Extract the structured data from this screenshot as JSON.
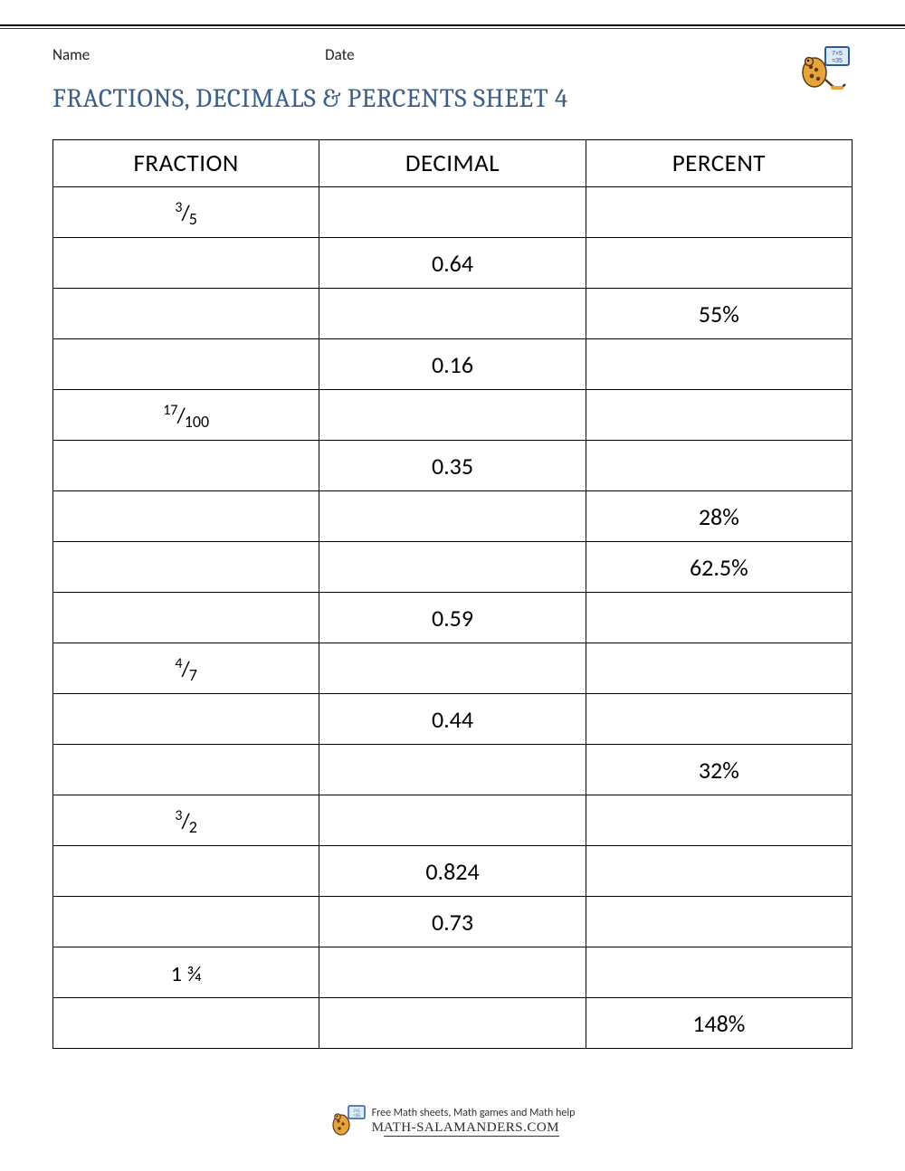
{
  "meta": {
    "name_label": "Name",
    "date_label": "Date"
  },
  "title": "FRACTIONS, DECIMALS & PERCENTS SHEET 4",
  "table": {
    "columns": [
      "FRACTION",
      "DECIMAL",
      "PERCENT"
    ],
    "column_widths_pct": [
      33.3,
      33.3,
      33.4
    ],
    "header_fontsize": 27,
    "cell_fontsize": 26,
    "border_color": "#000000",
    "rows": [
      {
        "fraction_num": "3",
        "fraction_den": "5",
        "decimal": "",
        "percent": ""
      },
      {
        "fraction_num": "",
        "fraction_den": "",
        "decimal": "0.64",
        "percent": ""
      },
      {
        "fraction_num": "",
        "fraction_den": "",
        "decimal": "",
        "percent": "55%"
      },
      {
        "fraction_num": "",
        "fraction_den": "",
        "decimal": "0.16",
        "percent": ""
      },
      {
        "fraction_num": "17",
        "fraction_den": "100",
        "decimal": "",
        "percent": ""
      },
      {
        "fraction_num": "",
        "fraction_den": "",
        "decimal": "0.35",
        "percent": ""
      },
      {
        "fraction_num": "",
        "fraction_den": "",
        "decimal": "",
        "percent": "28%"
      },
      {
        "fraction_num": "",
        "fraction_den": "",
        "decimal": "",
        "percent": "62.5%"
      },
      {
        "fraction_num": "",
        "fraction_den": "",
        "decimal": "0.59",
        "percent": ""
      },
      {
        "fraction_num": "4",
        "fraction_den": "7",
        "decimal": "",
        "percent": ""
      },
      {
        "fraction_num": "",
        "fraction_den": "",
        "decimal": "0.44",
        "percent": ""
      },
      {
        "fraction_num": "",
        "fraction_den": "",
        "decimal": "",
        "percent": "32%"
      },
      {
        "fraction_num": "3",
        "fraction_den": "2",
        "decimal": "",
        "percent": ""
      },
      {
        "fraction_num": "",
        "fraction_den": "",
        "decimal": "0.824",
        "percent": ""
      },
      {
        "fraction_num": "",
        "fraction_den": "",
        "decimal": "0.73",
        "percent": ""
      },
      {
        "mixed": "1 ¾",
        "fraction_num": "",
        "fraction_den": "",
        "decimal": "",
        "percent": ""
      },
      {
        "fraction_num": "",
        "fraction_den": "",
        "decimal": "",
        "percent": "148%"
      }
    ]
  },
  "footer": {
    "tagline": "Free Math sheets, Math games and Math help",
    "brand": "ATH-SALAMANDERS.COM"
  },
  "colors": {
    "title": "#3b5f87",
    "text": "#000000",
    "background": "#ffffff",
    "salamander": "#e8a33a",
    "salamander_spots": "#5a3b12",
    "board_border": "#2a5aa0",
    "board_fill": "#dfeaf6"
  }
}
